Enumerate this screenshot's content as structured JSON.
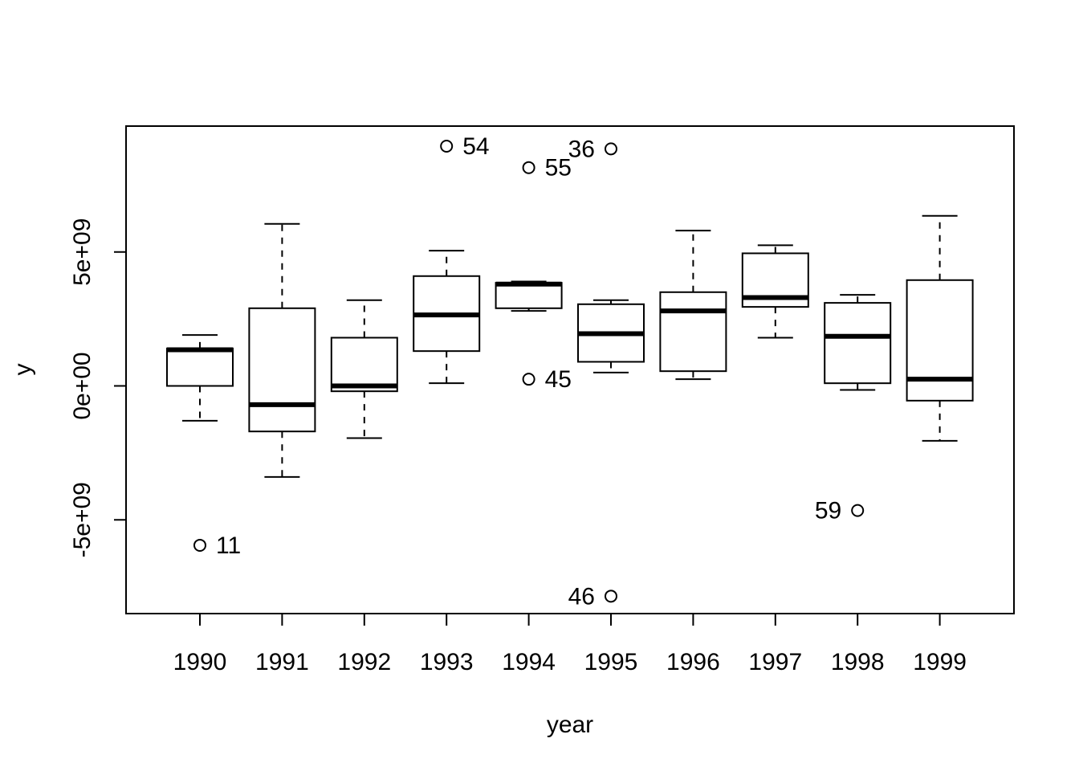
{
  "chart_data": {
    "type": "boxplot",
    "title": "",
    "xlabel": "year",
    "ylabel": "y",
    "ylim": [
      -8500000000.0,
      9700000000.0
    ],
    "categories": [
      "1990",
      "1991",
      "1992",
      "1993",
      "1994",
      "1995",
      "1996",
      "1997",
      "1998",
      "1999"
    ],
    "y_ticks": [
      {
        "value": -5000000000.0,
        "label": "-5e+09"
      },
      {
        "value": 0,
        "label": "0e+00"
      },
      {
        "value": 5000000000.0,
        "label": "5e+09"
      }
    ],
    "boxes": [
      {
        "category": "1990",
        "lower_whisker": -1300000000.0,
        "q1": 0.0,
        "median": 1350000000.0,
        "q3": 1400000000.0,
        "upper_whisker": 1900000000.0
      },
      {
        "category": "1991",
        "lower_whisker": -3400000000.0,
        "q1": -1700000000.0,
        "median": -700000000.0,
        "q3": 2900000000.0,
        "upper_whisker": 6050000000.0
      },
      {
        "category": "1992",
        "lower_whisker": -1950000000.0,
        "q1": -200000000.0,
        "median": 0.0,
        "q3": 1800000000.0,
        "upper_whisker": 3200000000.0
      },
      {
        "category": "1993",
        "lower_whisker": 100000000.0,
        "q1": 1300000000.0,
        "median": 2650000000.0,
        "q3": 4100000000.0,
        "upper_whisker": 5050000000.0
      },
      {
        "category": "1994",
        "lower_whisker": 2800000000.0,
        "q1": 2900000000.0,
        "median": 3800000000.0,
        "q3": 3850000000.0,
        "upper_whisker": 3900000000.0
      },
      {
        "category": "1995",
        "lower_whisker": 500000000.0,
        "q1": 900000000.0,
        "median": 1950000000.0,
        "q3": 3050000000.0,
        "upper_whisker": 3200000000.0
      },
      {
        "category": "1996",
        "lower_whisker": 250000000.0,
        "q1": 550000000.0,
        "median": 2800000000.0,
        "q3": 3500000000.0,
        "upper_whisker": 5800000000.0
      },
      {
        "category": "1997",
        "lower_whisker": 1800000000.0,
        "q1": 2950000000.0,
        "median": 3300000000.0,
        "q3": 4950000000.0,
        "upper_whisker": 5250000000.0
      },
      {
        "category": "1998",
        "lower_whisker": -150000000.0,
        "q1": 100000000.0,
        "median": 1850000000.0,
        "q3": 3100000000.0,
        "upper_whisker": 3400000000.0
      },
      {
        "category": "1999",
        "lower_whisker": -2050000000.0,
        "q1": -550000000.0,
        "median": 250000000.0,
        "q3": 3950000000.0,
        "upper_whisker": 6350000000.0
      }
    ],
    "outliers": [
      {
        "category": "1990",
        "value": -5950000000.0,
        "label": "11",
        "label_side": "right"
      },
      {
        "category": "1993",
        "value": 8950000000.0,
        "label": "54",
        "label_side": "right"
      },
      {
        "category": "1994",
        "value": 8150000000.0,
        "label": "55",
        "label_side": "right"
      },
      {
        "category": "1994",
        "value": 250000000.0,
        "label": "45",
        "label_side": "right"
      },
      {
        "category": "1995",
        "value": 8850000000.0,
        "label": "36",
        "label_side": "left"
      },
      {
        "category": "1995",
        "value": -7850000000.0,
        "label": "46",
        "label_side": "left"
      },
      {
        "category": "1998",
        "value": -4650000000.0,
        "label": "59",
        "label_side": "left"
      }
    ]
  }
}
